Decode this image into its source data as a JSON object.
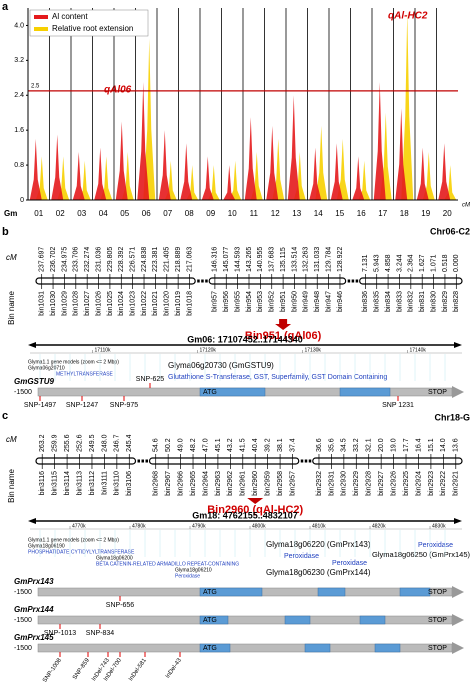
{
  "panel_a": {
    "label": "a",
    "type": "line",
    "ylim": [
      0,
      4.4
    ],
    "yticks": [
      0,
      0.8,
      1.6,
      2.4,
      3.2,
      {
        "value": 4,
        "label": "4.0"
      }
    ],
    "threshold": {
      "value": 2.5,
      "label": "2.5",
      "color": "#c00000"
    },
    "x_prefix": "Gm",
    "x_unit": "cM",
    "chromosomes": [
      "01",
      "02",
      "03",
      "04",
      "05",
      "06",
      "07",
      "08",
      "09",
      "10",
      "11",
      "12",
      "13",
      "14",
      "15",
      "16",
      "17",
      "18",
      "19",
      "20"
    ],
    "series": [
      {
        "name": "Al content",
        "color": "#e41a1c",
        "values": [
          1.4,
          1.5,
          1.1,
          1.2,
          1.8,
          2.7,
          1.6,
          1.3,
          1.0,
          0.8,
          1.9,
          1.7,
          2.4,
          1.2,
          1.3,
          1.0,
          2.7,
          2.1,
          1.2,
          1.3
        ]
      },
      {
        "name": "Relative root extension",
        "color": "#f7d000",
        "values": [
          1.0,
          1.0,
          0.9,
          1.0,
          1.1,
          3.7,
          0.9,
          0.8,
          0.8,
          0.9,
          1.1,
          1.4,
          1.1,
          1.7,
          1.4,
          0.9,
          2.0,
          4.3,
          1.1,
          0.8
        ]
      }
    ],
    "annotations": [
      "qAl06",
      "qAl-HC2"
    ]
  },
  "panel_b": {
    "label": "b",
    "chromosome": "Chr06-C2",
    "cm_label": "cM",
    "bin_label": "Bin name",
    "groups": [
      {
        "cM": [
          "237.697",
          "236.702",
          "234.975",
          "233.706",
          "232.274",
          "231.036",
          "229.805",
          "228.392",
          "226.571",
          "224.838",
          "223.381",
          "221.405",
          "218.889",
          "217.063"
        ],
        "bins": [
          "bin1031",
          "bin1030",
          "bin1029",
          "bin1028",
          "bin1027",
          "bin1026",
          "bin1025",
          "bin1024",
          "bin1023",
          "bin1022",
          "bin1021",
          "bin1020",
          "bin1019",
          "bin1018"
        ]
      },
      {
        "cM": [
          "146.316",
          "145.077",
          "144.593",
          "143.265",
          "140.955",
          "137.683",
          "135.115",
          "133.514",
          "132.263",
          "131.033",
          "129.784",
          "128.922"
        ],
        "bins": [
          "bin957",
          "bin956",
          "bin955",
          "bin954",
          "bin953",
          "bin952",
          "bin951",
          "bin950",
          "bin949",
          "bin948",
          "bin947",
          "bin946"
        ]
      },
      {
        "cM": [
          "7.131",
          "5.943",
          "4.858",
          "3.244",
          "2.364",
          "1.627",
          "1.071",
          "0.518",
          "0.000"
        ],
        "bins": [
          "bin836",
          "bin835",
          "bin834",
          "bin833",
          "bin832",
          "bin831",
          "bin830",
          "bin829",
          "bin828"
        ]
      }
    ],
    "highlight": "Bin951 (qAl06)",
    "region": "Gm06: 17107452..17144340",
    "ruler": [
      "17110k",
      "17120k",
      "17130k",
      "17140k"
    ],
    "models": [
      "Glyma1.1 gene models (zoom <= 2 Mbp)",
      "Glyma06g20710",
      "METHYLTRANSFERASE"
    ],
    "gene": "Glyma06g20730 (GmGSTU9)",
    "description": "Glutathione S-Transferase, GST, Superfamily, GST Domain Containing",
    "structure": {
      "name": "GmGSTU9",
      "start": "-1500",
      "atg": "ATG",
      "stop": "STOP",
      "snps": [
        "SNP-1497",
        "SNP-1247",
        "SNP-975",
        "SNP-625",
        "SNP 1231"
      ]
    }
  },
  "panel_c": {
    "label": "c",
    "chromosome": "Chr18-G",
    "cm_label": "cM",
    "bin_label": "Bin name",
    "groups": [
      {
        "cM": [
          "263.2",
          "259.9",
          "255.6",
          "252.6",
          "249.5",
          "248.0",
          "246.7",
          "245.4"
        ],
        "bins": [
          "bin3116",
          "bin3115",
          "bin3114",
          "bin3113",
          "bin3112",
          "bin3111",
          "bin3110",
          "bin3106"
        ]
      },
      {
        "cM": [
          "54.6",
          "50.2",
          "49.0",
          "48.2",
          "47.0",
          "45.1",
          "43.2",
          "41.5",
          "40.4",
          "39.2",
          "38.1",
          "37.4"
        ],
        "bins": [
          "bin2968",
          "bin2967",
          "bin2966",
          "bin2965",
          "bin2964",
          "bin2963",
          "bin2962",
          "bin2961",
          "bin2960",
          "bin2959",
          "bin2958",
          "bin2957"
        ]
      },
      {
        "cM": [
          "36.6",
          "35.6",
          "34.5",
          "33.2",
          "32.1",
          "20.0",
          "19.0",
          "17.7",
          "16.4",
          "15.1",
          "14.0",
          "13.6"
        ],
        "bins": [
          "bin2932",
          "bin2931",
          "bin2930",
          "bin2929",
          "bin2928",
          "bin2927",
          "bin2926",
          "bin2925",
          "bin2924",
          "bin2923",
          "bin2922",
          "bin2921"
        ]
      }
    ],
    "highlight": "Bin2960 (qAl-HC2)",
    "region": "Gm18: 4762155..4832107",
    "ruler": [
      "4770k",
      "4780k",
      "4790k",
      "4800k",
      "4810k",
      "4820k",
      "4830k"
    ],
    "models": [
      "Glyma1.1 gene models (zoom <= 2 Mbp)",
      "Glyma18g06190",
      "PHOSPHATIDATE CYTIDYLYLTRANSFERASE",
      "Glyma18g06200",
      "BETA CATENIN-RELATED ARMADILLO REPEAT-CONTAINING",
      "Glyma18g06210",
      "Peroxidase"
    ],
    "genes": [
      "Glyma18g06220 (GmPrx143)",
      "Peroxidase",
      "Peroxidase",
      "Peroxidase",
      "Glyma18g06250 (GmPrx145)",
      "Glyma18g06230 (GmPrx144)"
    ],
    "structures": [
      {
        "name": "GmPrx143",
        "start": "-1500",
        "atg": "ATG",
        "stop": "STOP",
        "snps": [
          "SNP-656"
        ]
      },
      {
        "name": "GmPrx144",
        "start": "-1500",
        "atg": "ATG",
        "stop": "STOP",
        "snps": [
          "SNP-1013",
          "SNP-834"
        ]
      },
      {
        "name": "GmPrx145",
        "start": "-1500",
        "atg": "ATG",
        "stop": "STOP",
        "snps": [
          "SNP-1008",
          "SNP-859",
          "InDel-743",
          "InDel-700",
          "InDel-581",
          "InDel-43"
        ]
      }
    ]
  }
}
